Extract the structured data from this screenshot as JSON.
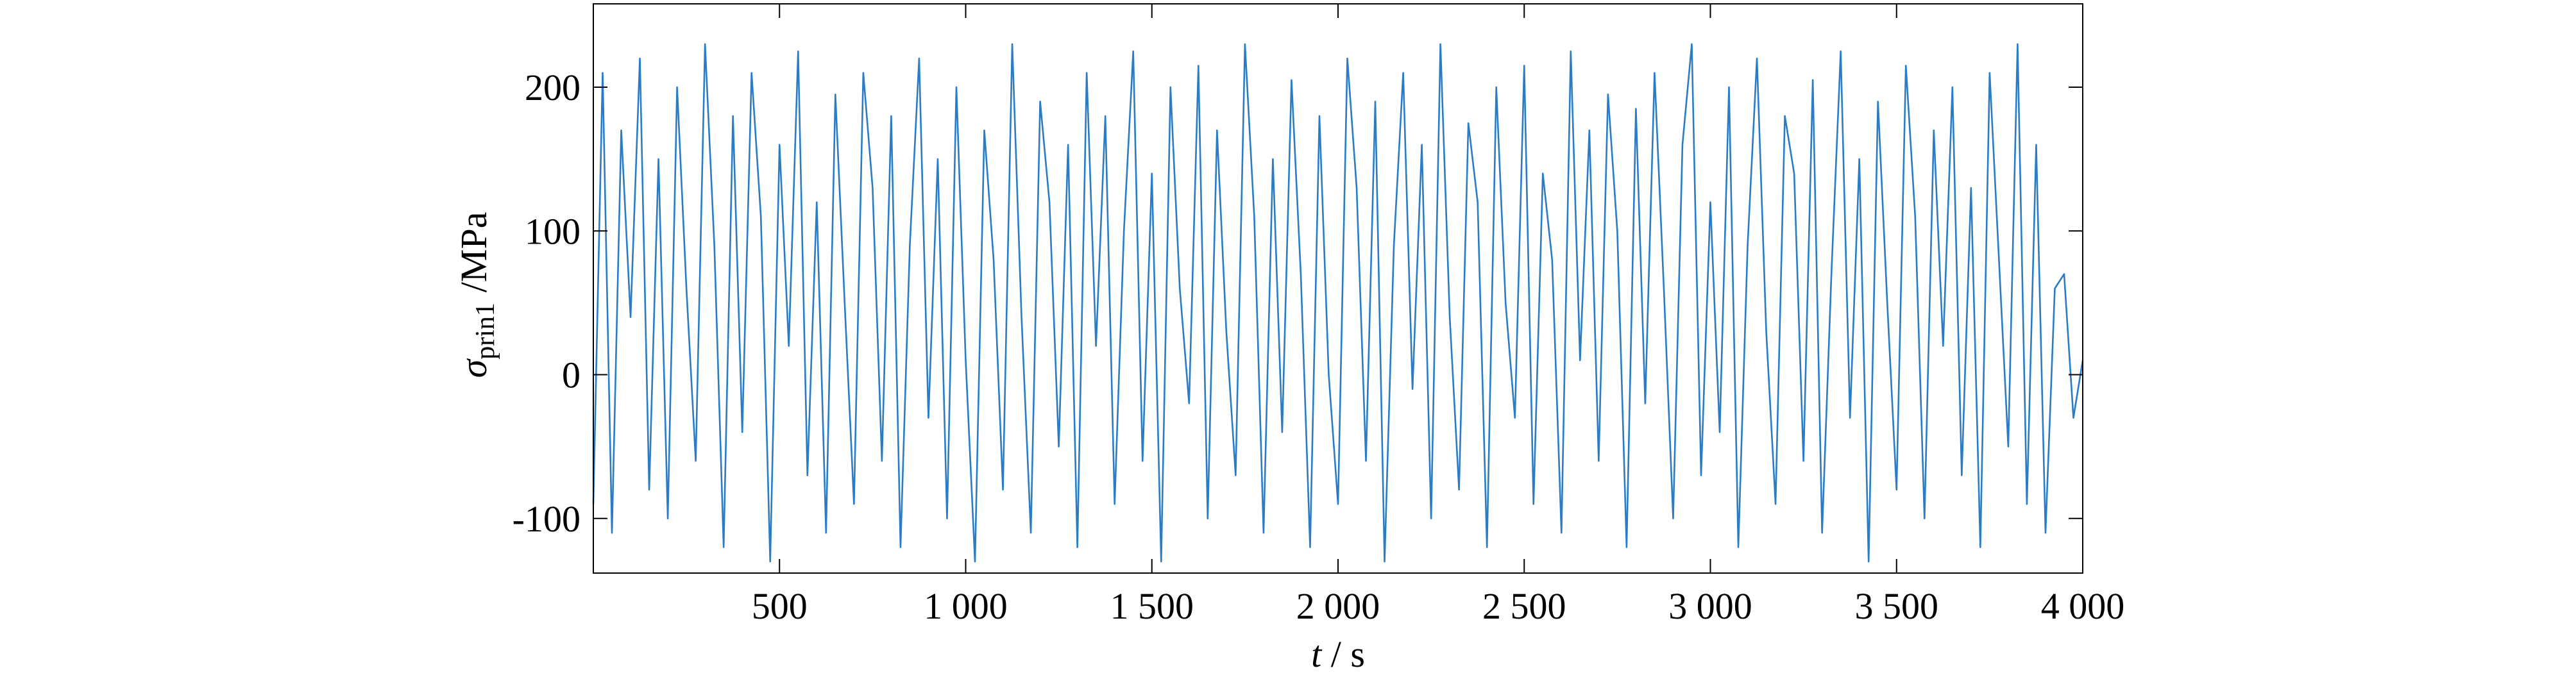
{
  "chart_data": {
    "type": "line",
    "xlabel": {
      "symbol": "t",
      "unit": "/ s"
    },
    "ylabel": {
      "symbol": "σ",
      "subscript": "prin1",
      "unit": "/MPa"
    },
    "xlim": [
      0,
      4000
    ],
    "ylim": [
      -138,
      258
    ],
    "xticks": [
      500,
      {
        "value": 1000,
        "label": "1 000"
      },
      {
        "value": 1500,
        "label": "1 500"
      },
      {
        "value": 2000,
        "label": "2 000"
      },
      {
        "value": 2500,
        "label": "2 500"
      },
      {
        "value": 3000,
        "label": "3 000"
      },
      {
        "value": 3500,
        "label": "3 500"
      },
      {
        "value": 4000,
        "label": "4 000"
      }
    ],
    "yticks": [
      -100,
      0,
      100,
      200
    ],
    "grid": false,
    "color": "#2b7cc7",
    "x": [
      0,
      25,
      50,
      75,
      100,
      125,
      150,
      175,
      200,
      225,
      250,
      275,
      300,
      325,
      350,
      375,
      400,
      425,
      450,
      475,
      500,
      525,
      550,
      575,
      600,
      625,
      650,
      675,
      700,
      725,
      750,
      775,
      800,
      825,
      850,
      875,
      900,
      925,
      950,
      975,
      1000,
      1025,
      1050,
      1075,
      1100,
      1125,
      1150,
      1175,
      1200,
      1225,
      1250,
      1275,
      1300,
      1325,
      1350,
      1375,
      1400,
      1425,
      1450,
      1475,
      1500,
      1525,
      1550,
      1575,
      1600,
      1625,
      1650,
      1675,
      1700,
      1725,
      1750,
      1775,
      1800,
      1825,
      1850,
      1875,
      1900,
      1925,
      1950,
      1975,
      2000,
      2025,
      2050,
      2075,
      2100,
      2125,
      2150,
      2175,
      2200,
      2225,
      2250,
      2275,
      2300,
      2325,
      2350,
      2375,
      2400,
      2425,
      2450,
      2475,
      2500,
      2525,
      2550,
      2575,
      2600,
      2625,
      2650,
      2675,
      2700,
      2725,
      2750,
      2775,
      2800,
      2825,
      2850,
      2875,
      2900,
      2925,
      2950,
      2975,
      3000,
      3025,
      3050,
      3075,
      3100,
      3125,
      3150,
      3175,
      3200,
      3225,
      3250,
      3275,
      3300,
      3325,
      3350,
      3375,
      3400,
      3425,
      3450,
      3475,
      3500,
      3525,
      3550,
      3575,
      3600,
      3625,
      3650,
      3675,
      3700,
      3725,
      3750,
      3775,
      3800,
      3825,
      3850,
      3875,
      3900,
      3925,
      3950,
      3975,
      4000
    ],
    "values": [
      -90,
      210,
      -110,
      170,
      40,
      220,
      -80,
      150,
      -100,
      200,
      60,
      -60,
      230,
      90,
      -120,
      180,
      -40,
      210,
      110,
      -130,
      160,
      20,
      225,
      -70,
      120,
      -110,
      195,
      50,
      -90,
      210,
      130,
      -60,
      180,
      -120,
      90,
      220,
      -30,
      150,
      -100,
      200,
      10,
      -130,
      170,
      80,
      -80,
      230,
      40,
      -110,
      190,
      120,
      -50,
      160,
      -120,
      210,
      20,
      180,
      -90,
      100,
      225,
      -60,
      140,
      -130,
      200,
      60,
      -20,
      215,
      -100,
      170,
      30,
      -70,
      230,
      110,
      -110,
      150,
      -40,
      205,
      70,
      -120,
      180,
      0,
      -90,
      220,
      130,
      -60,
      190,
      -130,
      90,
      210,
      -10,
      160,
      -100,
      230,
      40,
      -80,
      175,
      120,
      -120,
      200,
      50,
      -30,
      215,
      -90,
      140,
      80,
      -110,
      225,
      10,
      170,
      -60,
      195,
      100,
      -120,
      185,
      -20,
      210,
      60,
      -100,
      160,
      230,
      -70,
      120,
      -40,
      200,
      -120,
      90,
      220,
      30,
      -90,
      180,
      140,
      -60,
      205,
      -110,
      70,
      225,
      -30,
      150,
      -130,
      190,
      50,
      -80,
      215,
      110,
      -100,
      170,
      20,
      200,
      -70,
      130,
      -120,
      210,
      80,
      -50,
      230,
      -90,
      160,
      -110,
      60,
      70,
      -30,
      10
    ]
  }
}
